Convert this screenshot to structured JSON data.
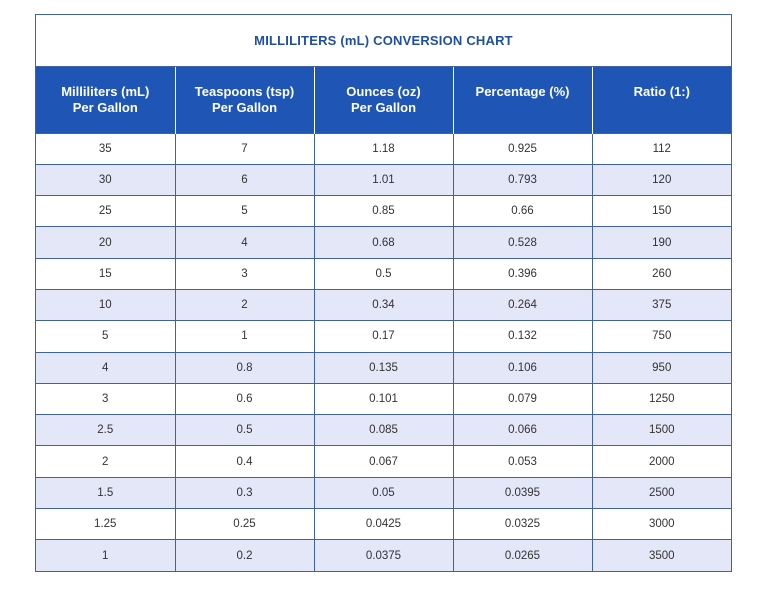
{
  "title": "MILLILITERS (mL) CONVERSION CHART",
  "headers": [
    {
      "line1": "Milliliters (mL)",
      "line2": "Per Gallon"
    },
    {
      "line1": "Teaspoons (tsp)",
      "line2": "Per Gallon"
    },
    {
      "line1": "Ounces (oz)",
      "line2": "Per Gallon"
    },
    {
      "line1": "Percentage (%)",
      "line2": ""
    },
    {
      "line1": "Ratio (1:)",
      "line2": ""
    }
  ],
  "rows": [
    [
      "35",
      "7",
      "1.18",
      "0.925",
      "112"
    ],
    [
      "30",
      "6",
      "1.01",
      "0.793",
      "120"
    ],
    [
      "25",
      "5",
      "0.85",
      "0.66",
      "150"
    ],
    [
      "20",
      "4",
      "0.68",
      "0.528",
      "190"
    ],
    [
      "15",
      "3",
      "0.5",
      "0.396",
      "260"
    ],
    [
      "10",
      "2",
      "0.34",
      "0.264",
      "375"
    ],
    [
      "5",
      "1",
      "0.17",
      "0.132",
      "750"
    ],
    [
      "4",
      "0.8",
      "0.135",
      "0.106",
      "950"
    ],
    [
      "3",
      "0.6",
      "0.101",
      "0.079",
      "1250"
    ],
    [
      "2.5",
      "0.5",
      "0.085",
      "0.066",
      "1500"
    ],
    [
      "2",
      "0.4",
      "0.067",
      "0.053",
      "2000"
    ],
    [
      "1.5",
      "0.3",
      "0.05",
      "0.0395",
      "2500"
    ],
    [
      "1.25",
      "0.25",
      "0.0425",
      "0.0325",
      "3000"
    ],
    [
      "1",
      "0.2",
      "0.0375",
      "0.0265",
      "3500"
    ]
  ],
  "colors": {
    "header_bg": "#1f55b5",
    "title_text": "#1f4fa0",
    "stripe_bg": "#e3e7f7",
    "border": "#3f62a6"
  }
}
